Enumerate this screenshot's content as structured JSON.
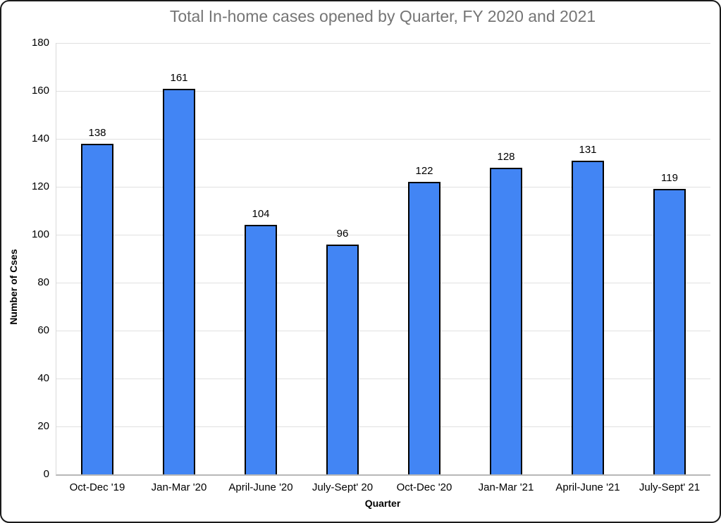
{
  "chart_data": {
    "type": "bar",
    "title": "Total In-home cases opened by Quarter, FY 2020 and 2021",
    "xlabel": "Quarter",
    "ylabel": "Number of Cses",
    "categories": [
      "Oct-Dec '19",
      "Jan-Mar '20",
      "April-June '20",
      "July-Sept' 20",
      "Oct-Dec '20",
      "Jan-Mar '21",
      "April-June '21",
      "July-Sept' 21"
    ],
    "values": [
      138,
      161,
      104,
      96,
      122,
      128,
      131,
      119
    ],
    "ylim": [
      0,
      180
    ],
    "yticks": [
      0,
      20,
      40,
      60,
      80,
      100,
      120,
      140,
      160,
      180
    ],
    "grid": true,
    "legend": "none",
    "value_labels_shown": true,
    "colors": {
      "bar_fill": "#4285F4",
      "bar_border": "#000000",
      "title_text": "#757575",
      "axis_text": "#000000",
      "gridline": "#e0e0e0",
      "baseline": "#b7b7b7",
      "background": "#ffffff"
    }
  }
}
